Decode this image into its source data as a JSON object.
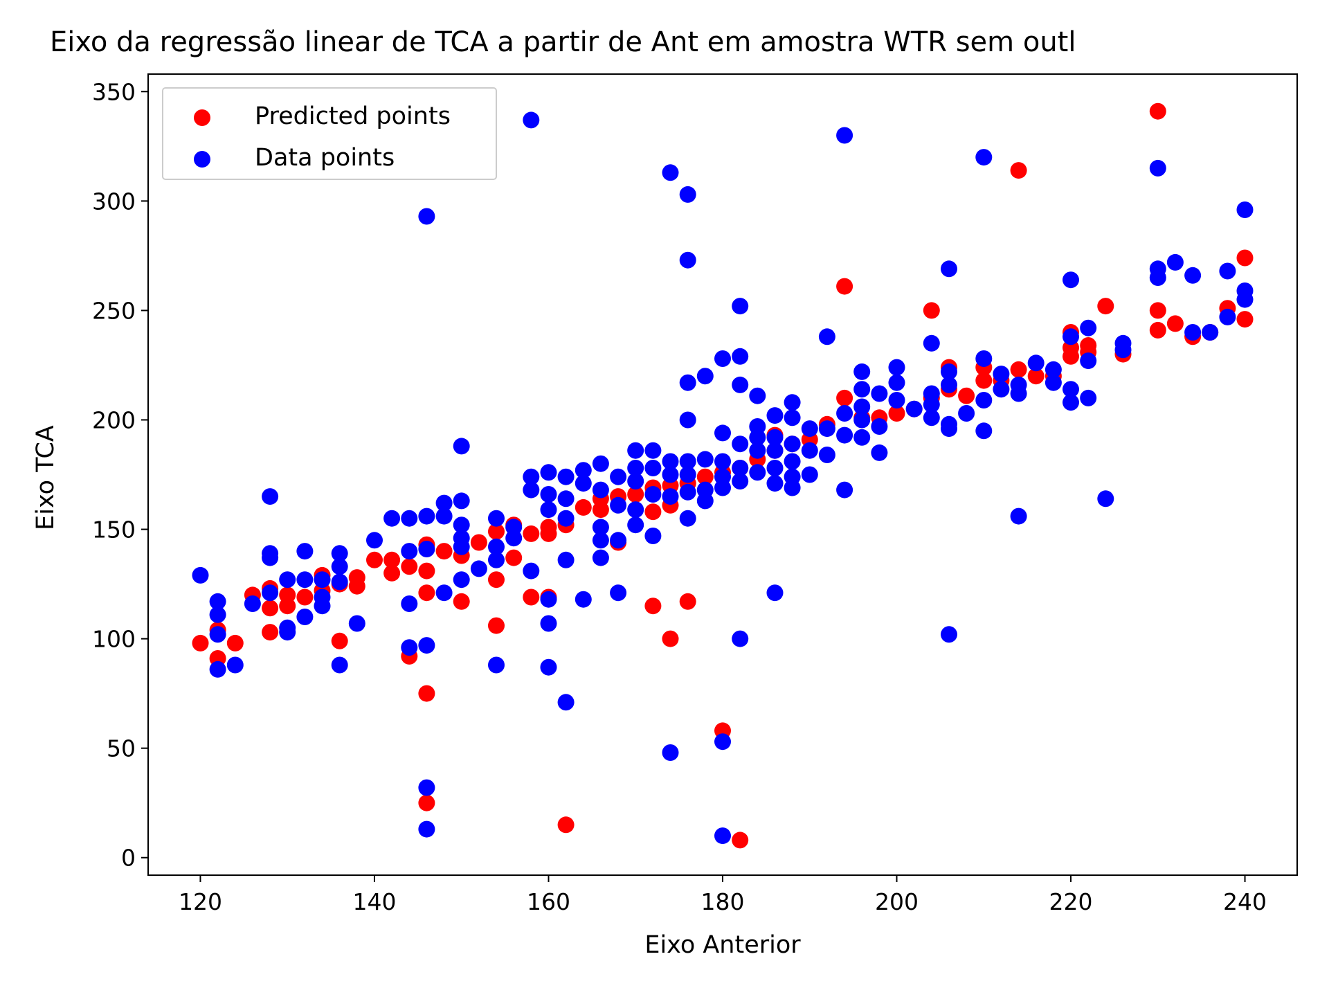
{
  "chart_data": {
    "type": "scatter",
    "title": "Eixo da regressão linear de TCA a partir de Ant em amostra WTR sem outl",
    "xlabel": "Eixo Anterior",
    "ylabel": "Eixo TCA",
    "xlim": [
      114,
      246
    ],
    "ylim": [
      -8,
      358
    ],
    "x_ticks": [
      120,
      140,
      160,
      180,
      200,
      220,
      240
    ],
    "y_ticks": [
      0,
      50,
      100,
      150,
      200,
      250,
      300,
      350
    ],
    "grid": false,
    "legend_position": "top-left",
    "series": [
      {
        "name": "Predicted points",
        "color": "#ff0000",
        "points": [
          [
            120,
            98
          ],
          [
            122,
            91
          ],
          [
            122,
            104
          ],
          [
            124,
            98
          ],
          [
            126,
            120
          ],
          [
            128,
            123
          ],
          [
            128,
            114
          ],
          [
            128,
            103
          ],
          [
            130,
            115
          ],
          [
            130,
            120
          ],
          [
            132,
            119
          ],
          [
            134,
            129
          ],
          [
            134,
            122
          ],
          [
            136,
            125
          ],
          [
            136,
            99
          ],
          [
            138,
            124
          ],
          [
            138,
            128
          ],
          [
            140,
            136
          ],
          [
            142,
            130
          ],
          [
            142,
            136
          ],
          [
            144,
            133
          ],
          [
            144,
            92
          ],
          [
            146,
            131
          ],
          [
            146,
            143
          ],
          [
            146,
            121
          ],
          [
            146,
            75
          ],
          [
            146,
            25
          ],
          [
            148,
            140
          ],
          [
            150,
            138
          ],
          [
            150,
            117
          ],
          [
            152,
            144
          ],
          [
            154,
            149
          ],
          [
            154,
            127
          ],
          [
            154,
            106
          ],
          [
            156,
            152
          ],
          [
            156,
            137
          ],
          [
            158,
            148
          ],
          [
            158,
            119
          ],
          [
            160,
            148
          ],
          [
            160,
            151
          ],
          [
            160,
            119
          ],
          [
            162,
            152
          ],
          [
            162,
            15
          ],
          [
            164,
            160
          ],
          [
            166,
            159
          ],
          [
            166,
            164
          ],
          [
            168,
            144
          ],
          [
            168,
            165
          ],
          [
            170,
            166
          ],
          [
            172,
            169
          ],
          [
            172,
            158
          ],
          [
            172,
            115
          ],
          [
            174,
            170
          ],
          [
            174,
            161
          ],
          [
            174,
            100
          ],
          [
            176,
            171
          ],
          [
            176,
            117
          ],
          [
            178,
            174
          ],
          [
            180,
            176
          ],
          [
            180,
            58
          ],
          [
            182,
            178
          ],
          [
            182,
            8
          ],
          [
            184,
            182
          ],
          [
            186,
            186
          ],
          [
            186,
            193
          ],
          [
            188,
            189
          ],
          [
            190,
            191
          ],
          [
            192,
            198
          ],
          [
            194,
            210
          ],
          [
            194,
            261
          ],
          [
            196,
            201
          ],
          [
            198,
            201
          ],
          [
            200,
            203
          ],
          [
            202,
            205
          ],
          [
            204,
            210
          ],
          [
            204,
            250
          ],
          [
            206,
            214
          ],
          [
            206,
            224
          ],
          [
            208,
            211
          ],
          [
            210,
            218
          ],
          [
            210,
            224
          ],
          [
            212,
            218
          ],
          [
            214,
            223
          ],
          [
            214,
            314
          ],
          [
            216,
            220
          ],
          [
            218,
            220
          ],
          [
            220,
            229
          ],
          [
            220,
            240
          ],
          [
            220,
            233
          ],
          [
            222,
            234
          ],
          [
            222,
            231
          ],
          [
            224,
            252
          ],
          [
            226,
            230
          ],
          [
            230,
            250
          ],
          [
            230,
            241
          ],
          [
            230,
            341
          ],
          [
            232,
            244
          ],
          [
            234,
            238
          ],
          [
            236,
            240
          ],
          [
            238,
            251
          ],
          [
            240,
            246
          ],
          [
            240,
            274
          ]
        ]
      },
      {
        "name": "Data points",
        "color": "#0000ff",
        "points": [
          [
            120,
            129
          ],
          [
            122,
            117
          ],
          [
            122,
            111
          ],
          [
            122,
            102
          ],
          [
            122,
            86
          ],
          [
            124,
            88
          ],
          [
            126,
            116
          ],
          [
            128,
            165
          ],
          [
            128,
            139
          ],
          [
            128,
            137
          ],
          [
            128,
            121
          ],
          [
            130,
            127
          ],
          [
            130,
            105
          ],
          [
            130,
            103
          ],
          [
            132,
            140
          ],
          [
            132,
            127
          ],
          [
            132,
            110
          ],
          [
            134,
            127
          ],
          [
            134,
            119
          ],
          [
            134,
            115
          ],
          [
            136,
            139
          ],
          [
            136,
            133
          ],
          [
            136,
            126
          ],
          [
            136,
            88
          ],
          [
            138,
            107
          ],
          [
            140,
            145
          ],
          [
            142,
            155
          ],
          [
            144,
            155
          ],
          [
            144,
            140
          ],
          [
            144,
            116
          ],
          [
            144,
            96
          ],
          [
            146,
            293
          ],
          [
            146,
            156
          ],
          [
            146,
            141
          ],
          [
            146,
            97
          ],
          [
            146,
            32
          ],
          [
            146,
            13
          ],
          [
            148,
            162
          ],
          [
            148,
            156
          ],
          [
            148,
            121
          ],
          [
            150,
            188
          ],
          [
            150,
            163
          ],
          [
            150,
            152
          ],
          [
            150,
            146
          ],
          [
            150,
            142
          ],
          [
            150,
            127
          ],
          [
            152,
            132
          ],
          [
            154,
            155
          ],
          [
            154,
            142
          ],
          [
            154,
            136
          ],
          [
            154,
            88
          ],
          [
            156,
            151
          ],
          [
            156,
            146
          ],
          [
            158,
            337
          ],
          [
            158,
            174
          ],
          [
            158,
            168
          ],
          [
            158,
            131
          ],
          [
            160,
            176
          ],
          [
            160,
            166
          ],
          [
            160,
            159
          ],
          [
            160,
            118
          ],
          [
            160,
            107
          ],
          [
            160,
            87
          ],
          [
            162,
            174
          ],
          [
            162,
            164
          ],
          [
            162,
            155
          ],
          [
            162,
            136
          ],
          [
            162,
            71
          ],
          [
            164,
            177
          ],
          [
            164,
            171
          ],
          [
            164,
            118
          ],
          [
            166,
            180
          ],
          [
            166,
            168
          ],
          [
            166,
            151
          ],
          [
            166,
            145
          ],
          [
            166,
            137
          ],
          [
            168,
            174
          ],
          [
            168,
            161
          ],
          [
            168,
            145
          ],
          [
            168,
            121
          ],
          [
            170,
            186
          ],
          [
            170,
            178
          ],
          [
            170,
            172
          ],
          [
            170,
            159
          ],
          [
            170,
            152
          ],
          [
            172,
            186
          ],
          [
            172,
            178
          ],
          [
            172,
            166
          ],
          [
            172,
            147
          ],
          [
            174,
            313
          ],
          [
            174,
            181
          ],
          [
            174,
            175
          ],
          [
            174,
            165
          ],
          [
            174,
            48
          ],
          [
            176,
            303
          ],
          [
            176,
            273
          ],
          [
            176,
            217
          ],
          [
            176,
            200
          ],
          [
            176,
            181
          ],
          [
            176,
            175
          ],
          [
            176,
            167
          ],
          [
            176,
            155
          ],
          [
            178,
            220
          ],
          [
            178,
            182
          ],
          [
            178,
            168
          ],
          [
            178,
            163
          ],
          [
            180,
            228
          ],
          [
            180,
            194
          ],
          [
            180,
            181
          ],
          [
            180,
            174
          ],
          [
            180,
            169
          ],
          [
            180,
            53
          ],
          [
            180,
            10
          ],
          [
            182,
            252
          ],
          [
            182,
            229
          ],
          [
            182,
            216
          ],
          [
            182,
            189
          ],
          [
            182,
            178
          ],
          [
            182,
            172
          ],
          [
            182,
            100
          ],
          [
            184,
            211
          ],
          [
            184,
            197
          ],
          [
            184,
            192
          ],
          [
            184,
            186
          ],
          [
            184,
            176
          ],
          [
            186,
            202
          ],
          [
            186,
            192
          ],
          [
            186,
            186
          ],
          [
            186,
            178
          ],
          [
            186,
            171
          ],
          [
            186,
            121
          ],
          [
            188,
            208
          ],
          [
            188,
            201
          ],
          [
            188,
            189
          ],
          [
            188,
            181
          ],
          [
            188,
            174
          ],
          [
            188,
            169
          ],
          [
            190,
            196
          ],
          [
            190,
            186
          ],
          [
            190,
            175
          ],
          [
            192,
            238
          ],
          [
            192,
            196
          ],
          [
            192,
            184
          ],
          [
            194,
            330
          ],
          [
            194,
            203
          ],
          [
            194,
            193
          ],
          [
            194,
            168
          ],
          [
            196,
            222
          ],
          [
            196,
            214
          ],
          [
            196,
            206
          ],
          [
            196,
            200
          ],
          [
            196,
            192
          ],
          [
            198,
            212
          ],
          [
            198,
            197
          ],
          [
            198,
            185
          ],
          [
            200,
            224
          ],
          [
            200,
            217
          ],
          [
            200,
            209
          ],
          [
            202,
            205
          ],
          [
            204,
            235
          ],
          [
            204,
            212
          ],
          [
            204,
            207
          ],
          [
            204,
            201
          ],
          [
            206,
            269
          ],
          [
            206,
            222
          ],
          [
            206,
            216
          ],
          [
            206,
            198
          ],
          [
            206,
            196
          ],
          [
            206,
            102
          ],
          [
            208,
            203
          ],
          [
            210,
            320
          ],
          [
            210,
            228
          ],
          [
            210,
            209
          ],
          [
            210,
            195
          ],
          [
            212,
            221
          ],
          [
            212,
            214
          ],
          [
            214,
            216
          ],
          [
            214,
            212
          ],
          [
            214,
            156
          ],
          [
            216,
            226
          ],
          [
            218,
            223
          ],
          [
            218,
            217
          ],
          [
            220,
            264
          ],
          [
            220,
            238
          ],
          [
            220,
            214
          ],
          [
            220,
            208
          ],
          [
            222,
            242
          ],
          [
            222,
            227
          ],
          [
            222,
            210
          ],
          [
            224,
            164
          ],
          [
            226,
            235
          ],
          [
            226,
            232
          ],
          [
            230,
            315
          ],
          [
            230,
            269
          ],
          [
            230,
            265
          ],
          [
            232,
            272
          ],
          [
            234,
            266
          ],
          [
            234,
            240
          ],
          [
            236,
            240
          ],
          [
            238,
            268
          ],
          [
            238,
            247
          ],
          [
            240,
            296
          ],
          [
            240,
            259
          ],
          [
            240,
            255
          ]
        ]
      }
    ]
  }
}
